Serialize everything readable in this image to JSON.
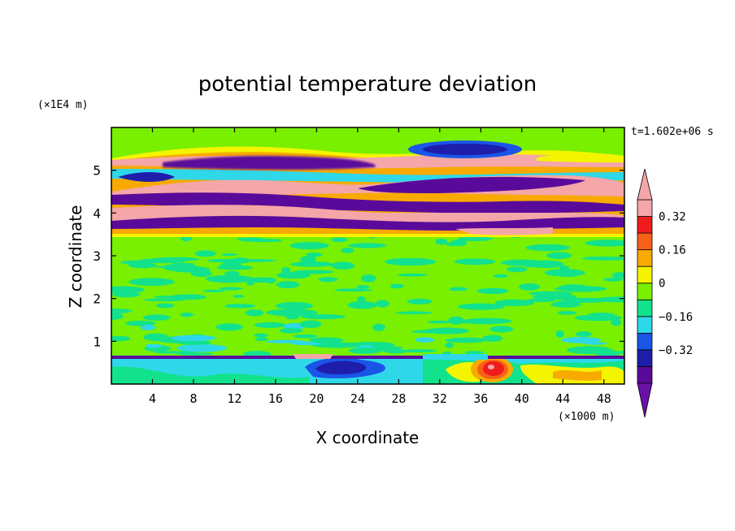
{
  "chart_data": {
    "type": "heatmap",
    "title": "potential temperature deviation",
    "xlabel": "X coordinate",
    "ylabel": "Z coordinate",
    "x_unit": "(×1000 m)",
    "y_unit": "(×1E4 m)",
    "time_label": "t=1.602e+06 s",
    "xlim": [
      0,
      50
    ],
    "ylim": [
      0,
      6
    ],
    "x_ticks": [
      4,
      8,
      12,
      16,
      20,
      24,
      28,
      32,
      36,
      40,
      44,
      48
    ],
    "y_ticks": [
      1,
      2,
      3,
      4,
      5
    ],
    "colorbar": {
      "levels": [
        -0.48,
        -0.4,
        -0.32,
        -0.24,
        -0.16,
        -0.08,
        0,
        0.08,
        0.16,
        0.24,
        0.32,
        0.4
      ],
      "tick_labels": [
        "0.32",
        "0.16",
        "0",
        "−0.16",
        "−0.32"
      ],
      "tick_values": [
        0.32,
        0.16,
        0,
        -0.16,
        -0.32
      ],
      "colors": [
        "#5a0a9a",
        "#1e1eaa",
        "#1a55e8",
        "#2ed8e8",
        "#12e28c",
        "#78f000",
        "#f4f400",
        "#f8aa00",
        "#f86018",
        "#ee1c1c",
        "#f4a6a8"
      ],
      "under_color": "#6a12a8",
      "over_color": "#f4a6a8"
    },
    "field": {
      "background_level": "#78f000",
      "regions": [
        {
          "desc": "lower boundary layer",
          "x": [
            0,
            50
          ],
          "y": [
            0,
            0.62
          ],
          "value": -0.12
        },
        {
          "desc": "strong positive anomaly",
          "x": [
            34.5,
            38.5
          ],
          "y": [
            0.05,
            0.6
          ],
          "value": 0.36
        },
        {
          "desc": "negative anomaly",
          "x": [
            19,
            24
          ],
          "y": [
            0.1,
            0.5
          ],
          "value": -0.36
        },
        {
          "desc": "upper band positive",
          "x": [
            0,
            50
          ],
          "y": [
            3.8,
            4.1
          ],
          "value": 0.45
        },
        {
          "desc": "upper band negative",
          "x": [
            0,
            50
          ],
          "y": [
            4.1,
            4.45
          ],
          "value": -0.45
        },
        {
          "desc": "upper band positive",
          "x": [
            0,
            50
          ],
          "y": [
            4.45,
            4.75
          ],
          "value": 0.45
        },
        {
          "desc": "upper band negative",
          "x": [
            5,
            28
          ],
          "y": [
            4.9,
            5.25
          ],
          "value": -0.45
        },
        {
          "desc": "upper band positive",
          "x": [
            28,
            45
          ],
          "y": [
            5.0,
            5.3
          ],
          "value": 0.45
        },
        {
          "desc": "top negative cell",
          "x": [
            30,
            40
          ],
          "y": [
            5.4,
            5.75
          ],
          "value": -0.4
        }
      ]
    }
  }
}
